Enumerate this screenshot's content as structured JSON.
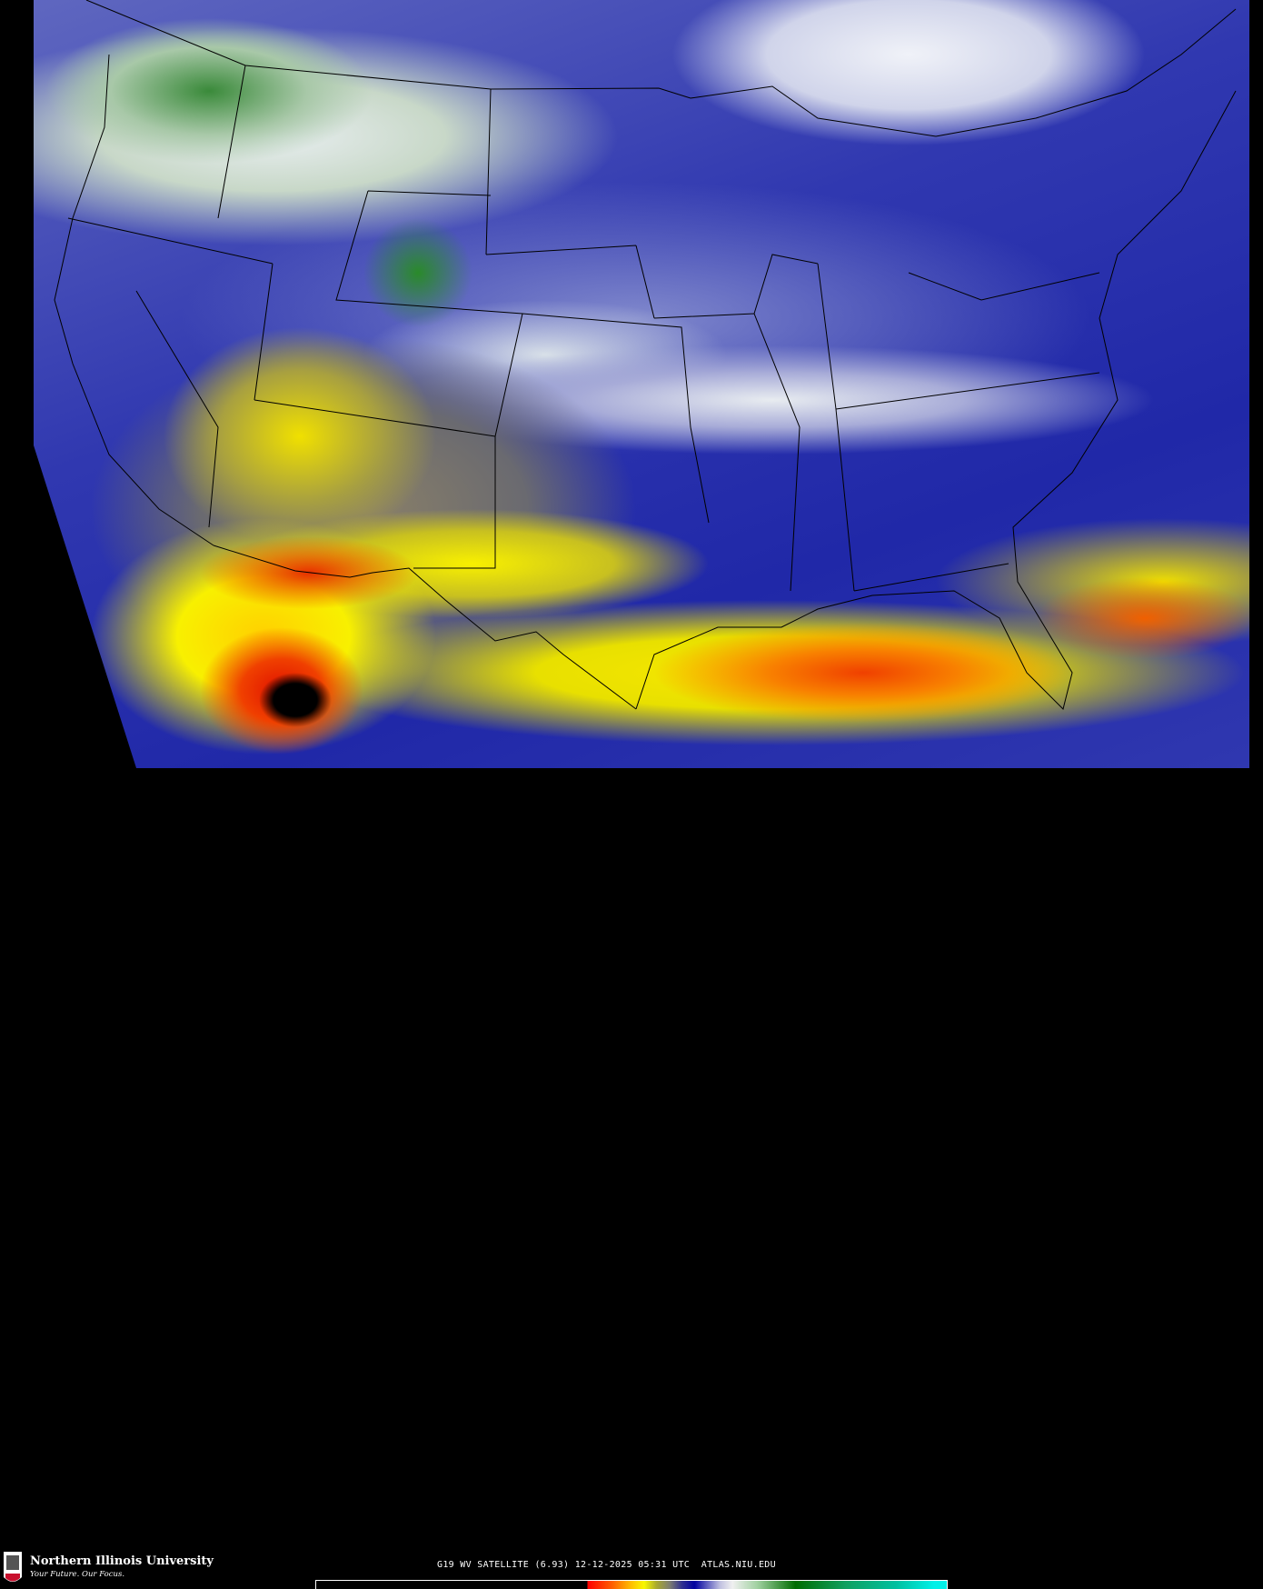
{
  "product": {
    "caption": "G19 WV SATELLITE (6.93) 12-12-2025 05:31 UTC  ATLAS.NIU.EDU",
    "satellite": "G19",
    "channel": "WV",
    "wavelength": "6.93",
    "date": "12-12-2025",
    "time": "05:31 UTC",
    "source": "ATLAS.NIU.EDU"
  },
  "branding": {
    "name": "Northern Illinois University",
    "tagline": "Your Future. Our Focus.",
    "logo_text": "NIU"
  },
  "colorbar": {
    "colors": [
      "#000000",
      "#ff0000",
      "#ff8000",
      "#f8f800",
      "#808070",
      "#0000a0",
      "#c0c0e0",
      "#f0f0f0",
      "#006c00",
      "#00f0e8"
    ]
  },
  "map": {
    "region": "Continental United States",
    "overlay": "state boundaries"
  }
}
